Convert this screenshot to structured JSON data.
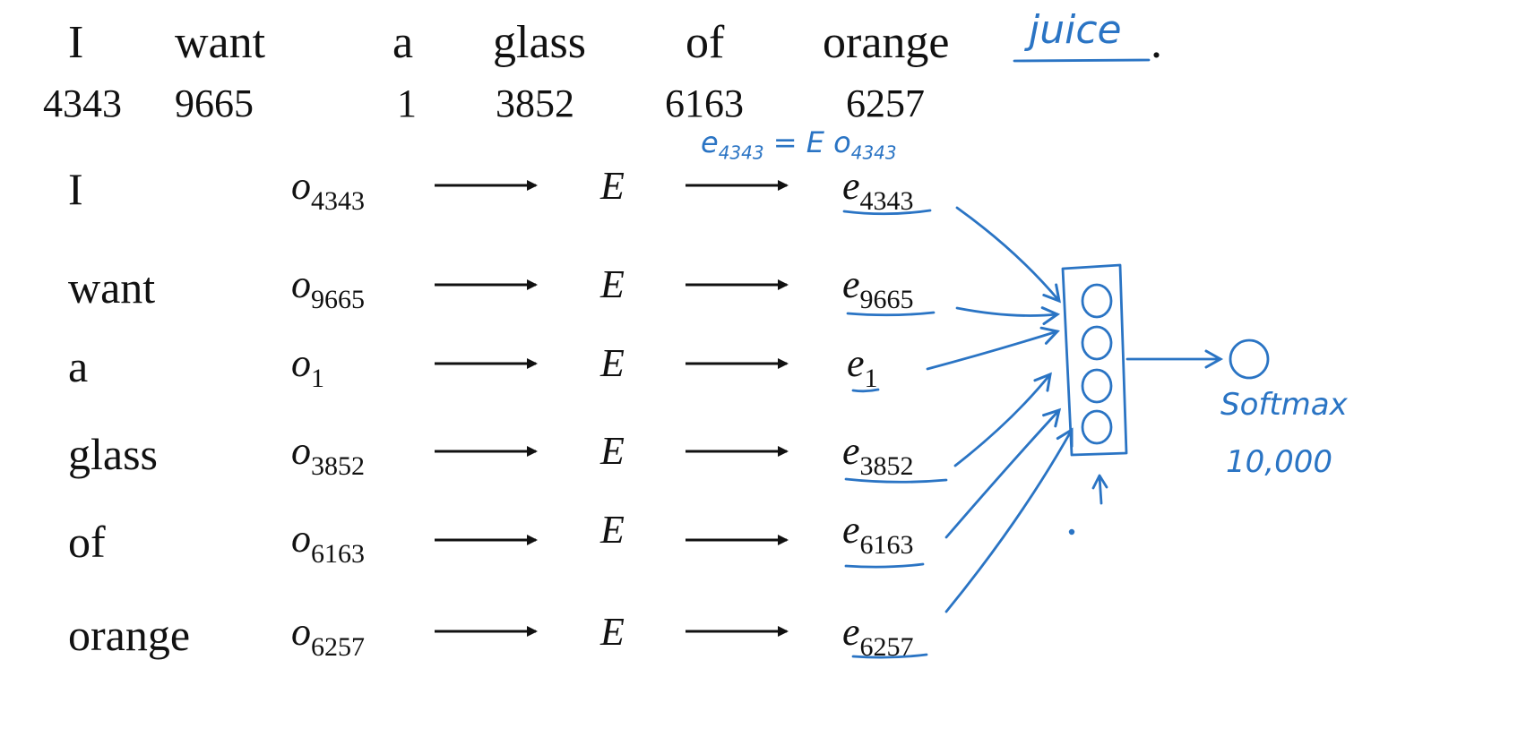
{
  "sentence": {
    "words": [
      "I",
      "want",
      "a",
      "glass",
      "of",
      "orange"
    ],
    "target": "juice",
    "period": "."
  },
  "indices": [
    "4343",
    "9665",
    "1",
    "3852",
    "6163",
    "6257"
  ],
  "rows": [
    {
      "word": "I",
      "onehot_sub": "4343",
      "embed_op": "E",
      "embed_sub": "4343"
    },
    {
      "word": "want",
      "onehot_sub": "9665",
      "embed_op": "E",
      "embed_sub": "9665"
    },
    {
      "word": "a",
      "onehot_sub": "1",
      "embed_op": "E",
      "embed_sub": "1"
    },
    {
      "word": "glass",
      "onehot_sub": "3852",
      "embed_op": "E",
      "embed_sub": "3852"
    },
    {
      "word": "of",
      "onehot_sub": "6163",
      "embed_op": "E",
      "embed_sub": "6163"
    },
    {
      "word": "orange",
      "onehot_sub": "6257",
      "embed_op": "E",
      "embed_sub": "6257"
    }
  ],
  "symbols": {
    "onehot": "o",
    "embedding": "e"
  },
  "annotations": {
    "equation_lhs": "e",
    "equation_lhs_sub": "4343",
    "equation_rhs": "= E o",
    "equation_rhs_sub": "4343",
    "softmax_label": "Softmax",
    "softmax_size": "10,000"
  },
  "colors": {
    "ink": "#111111",
    "handwriting": "#2a74c4"
  }
}
